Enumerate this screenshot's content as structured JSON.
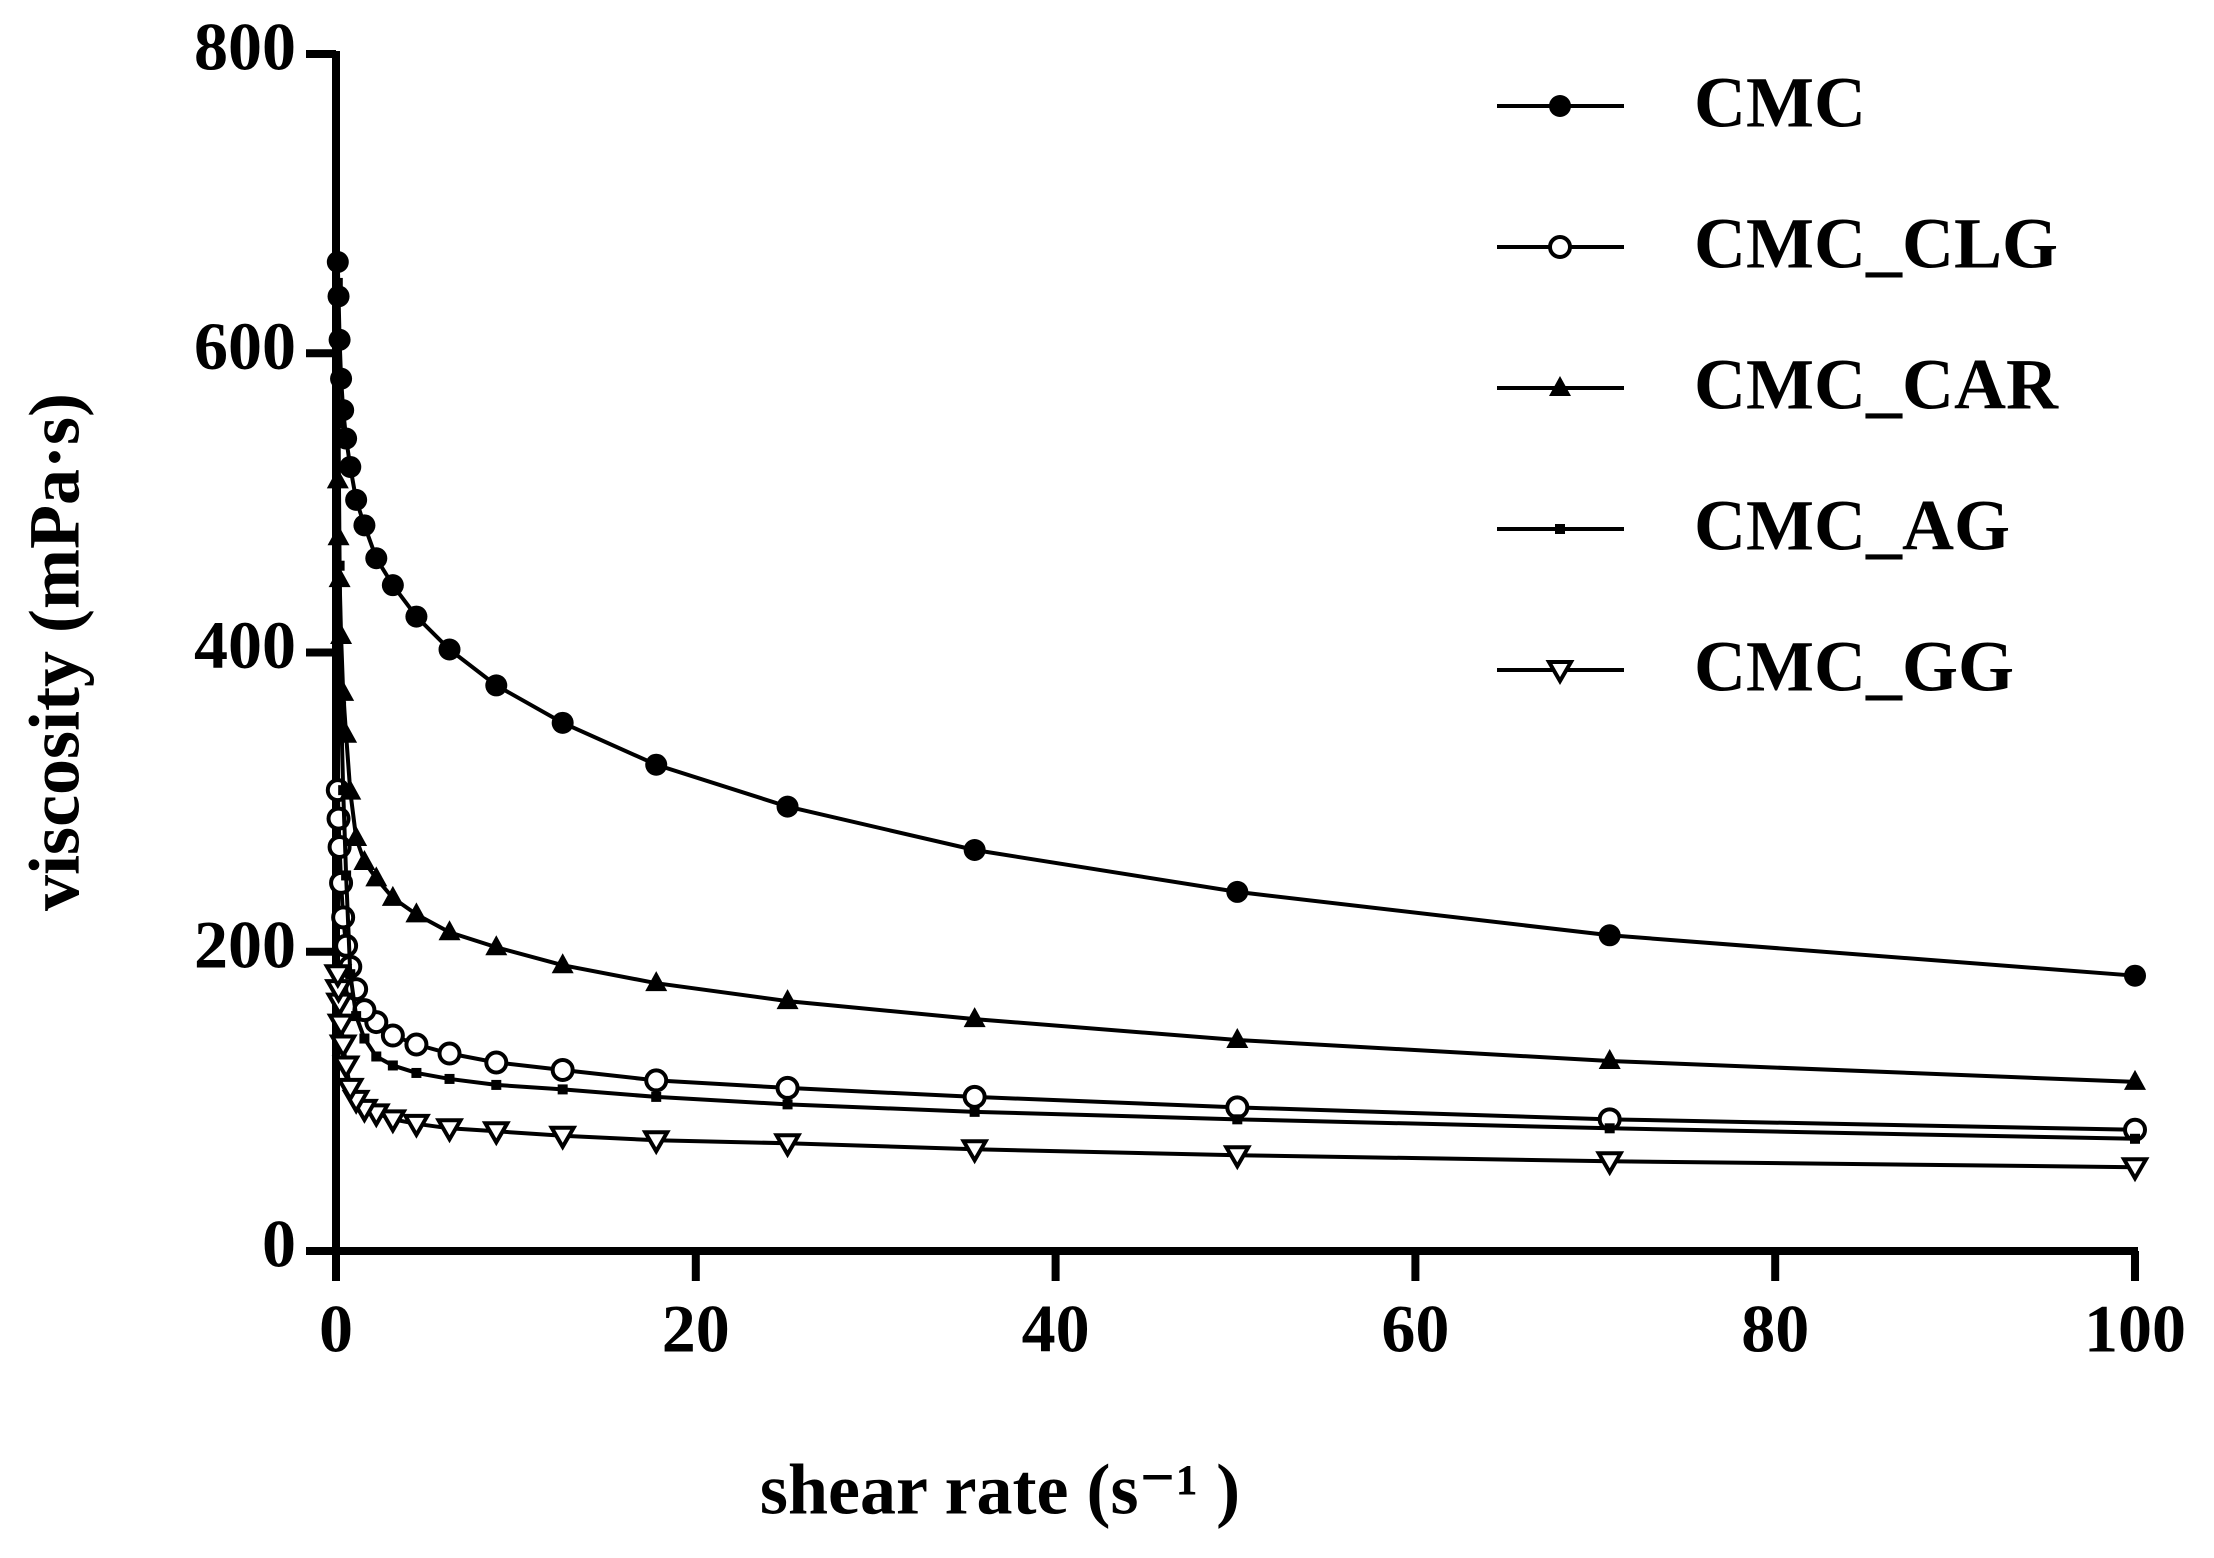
{
  "chart_data": {
    "type": "line",
    "xlabel": "shear rate (s⁻¹ )",
    "ylabel": "viscosity (mPa·s)",
    "x": [
      100,
      70.8,
      50.1,
      35.5,
      25.1,
      17.8,
      12.6,
      8.91,
      6.31,
      4.47,
      3.16,
      2.24,
      1.58,
      1.12,
      0.794,
      0.562,
      0.398,
      0.282,
      0.2,
      0.141,
      0.1
    ],
    "series": [
      {
        "name": "CMC",
        "color": "#000000",
        "marker": "circle-filled",
        "values": [
          184,
          211,
          240,
          268,
          297,
          325,
          353,
          378,
          402,
          424,
          445,
          463,
          485,
          502,
          524,
          543,
          562,
          583,
          609,
          638,
          661
        ]
      },
      {
        "name": "CMC_CLG",
        "color": "#000000",
        "marker": "circle-open",
        "values": [
          81,
          88,
          96,
          103,
          109,
          114,
          121,
          126,
          132,
          138,
          144,
          153,
          161,
          175,
          190,
          204,
          223,
          246,
          270,
          289,
          308
        ]
      },
      {
        "name": "CMC_CAR",
        "color": "#000000",
        "marker": "triangle-filled",
        "values": [
          113,
          127,
          141,
          155,
          167,
          179,
          191,
          203,
          213,
          225,
          236,
          249,
          260,
          276,
          307,
          345,
          373,
          411,
          449,
          477,
          515
        ]
      },
      {
        "name": "CMC_AG",
        "color": "#000000",
        "marker": "square-small",
        "values": [
          75,
          82,
          88,
          93,
          98,
          103,
          108,
          111,
          115,
          119,
          124,
          130,
          142,
          157,
          185,
          251,
          308,
          364,
          458,
          553,
          647
        ]
      },
      {
        "name": "CMC_GG",
        "color": "#000000",
        "marker": "triangle-down-open",
        "values": [
          56,
          60,
          64,
          68,
          72,
          74,
          77,
          80,
          82,
          85,
          88,
          92,
          95,
          101,
          109,
          124,
          138,
          152,
          166,
          175,
          185
        ]
      }
    ],
    "xlim": [
      0,
      100
    ],
    "xticks": [
      0,
      20,
      40,
      60,
      80,
      100
    ],
    "ylim": [
      0,
      800
    ],
    "yticks": [
      0,
      200,
      400,
      600,
      800
    ],
    "grid": false,
    "legend": "upper right"
  }
}
